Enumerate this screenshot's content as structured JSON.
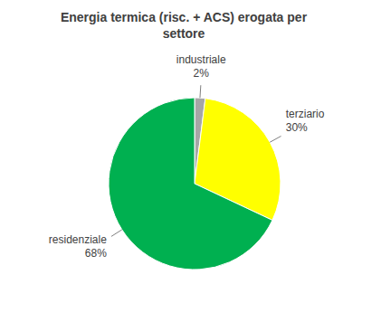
{
  "chart_data": {
    "type": "pie",
    "title": "Energia termica (risc. + ACS) erogata per settore",
    "categories": [
      "industriale",
      "terziario",
      "residenziale"
    ],
    "values": [
      2,
      30,
      68
    ],
    "value_labels": [
      "2%",
      "30%",
      "68%"
    ],
    "colors": [
      "#a6a6a6",
      "#ffff00",
      "#00b050"
    ],
    "data_labels": true
  }
}
